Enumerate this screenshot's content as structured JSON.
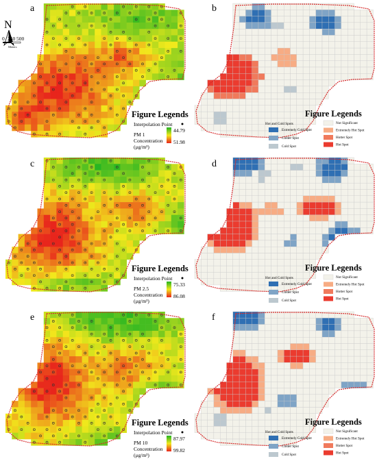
{
  "panel_letters": [
    "a",
    "b",
    "c",
    "d",
    "e",
    "f"
  ],
  "north_arrow": {
    "label": "N",
    "icon": "north-arrow-icon"
  },
  "scale_bar": {
    "ticks": [
      "0",
      "250",
      "500"
    ],
    "unit": "Meters"
  },
  "legend_title": "Figure Legends",
  "interpolation_point_label": "Interpolation Point",
  "concentration_unit": "(μg/m³)",
  "concentration_label": "Concentration",
  "pollutants": [
    {
      "label": "PM 1",
      "min": "44.79",
      "max": "51.98"
    },
    {
      "label": "PM 2.5",
      "min": "75.33",
      "max": "86.08"
    },
    {
      "label": "PM 10",
      "min": "87.97",
      "max": "99.82"
    }
  ],
  "hotspot_legend": {
    "heading": "Hot and Cold Spots",
    "items": [
      {
        "label": "Extremely Cold Spot",
        "color": "#2f6fb3"
      },
      {
        "label": "Colder Spot",
        "color": "#7fa4c6"
      },
      {
        "label": "Cold Spot",
        "color": "#bcc8cf"
      },
      {
        "label": "Not Significant",
        "color": "#f3f2ea"
      },
      {
        "label": "Extremely Hot Spot",
        "color": "#f7ac84"
      },
      {
        "label": "Hotter Spot",
        "color": "#f07a5c"
      },
      {
        "label": "Hot Spot",
        "color": "#eb3b2f"
      }
    ]
  },
  "colors": {
    "gradient_low": "#22b422",
    "gradient_mid": "#f2e91c",
    "gradient_high": "#e8251c",
    "boundary": "#d62a2a",
    "grid_line": "#c9c9c9"
  }
}
